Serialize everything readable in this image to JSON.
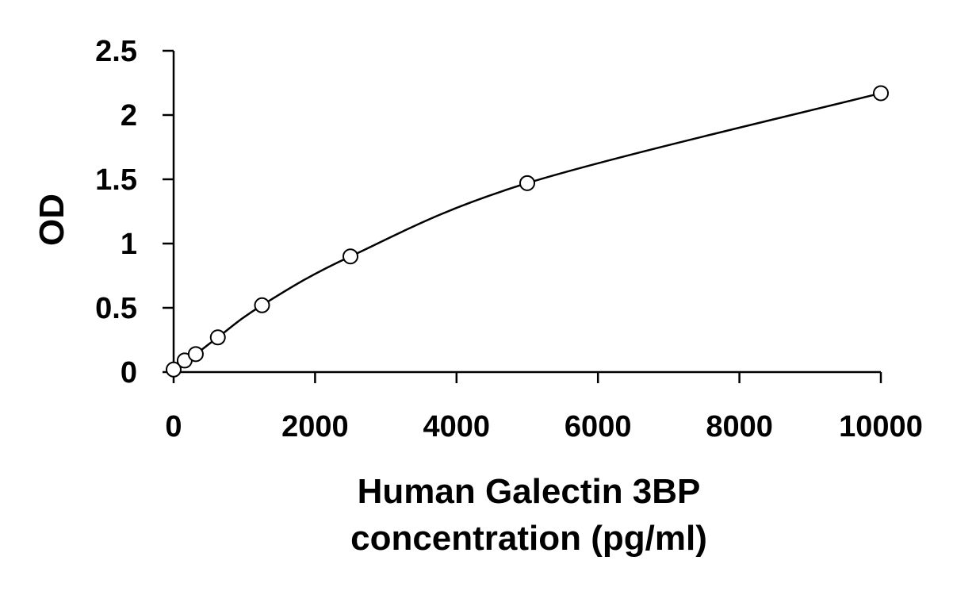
{
  "chart_data": {
    "type": "scatter",
    "title": "",
    "xlabel": [
      "Human Galectin 3BP",
      "concentration (pg/ml)"
    ],
    "ylabel": "OD",
    "xlim": [
      0,
      10000
    ],
    "ylim": [
      0,
      2.5
    ],
    "x_ticks": [
      0,
      2000,
      4000,
      6000,
      8000,
      10000
    ],
    "x_tick_labels": [
      "0",
      "2000",
      "4000",
      "6000",
      "8000",
      "10000"
    ],
    "y_ticks": [
      0,
      0.5,
      1,
      1.5,
      2,
      2.5
    ],
    "y_tick_labels": [
      "0",
      "0.5",
      "1",
      "1.5",
      "2",
      "2.5"
    ],
    "grid": false,
    "legend": "none",
    "series": [
      {
        "x": [
          0,
          156,
          313,
          625,
          1250,
          2500,
          5000,
          10000
        ],
        "y": [
          0.02,
          0.09,
          0.14,
          0.27,
          0.52,
          0.9,
          1.47,
          2.17
        ],
        "marker": "open-circle",
        "trendline": true
      }
    ],
    "colors": {
      "line": "#000000",
      "marker_fill": "#ffffff"
    }
  }
}
